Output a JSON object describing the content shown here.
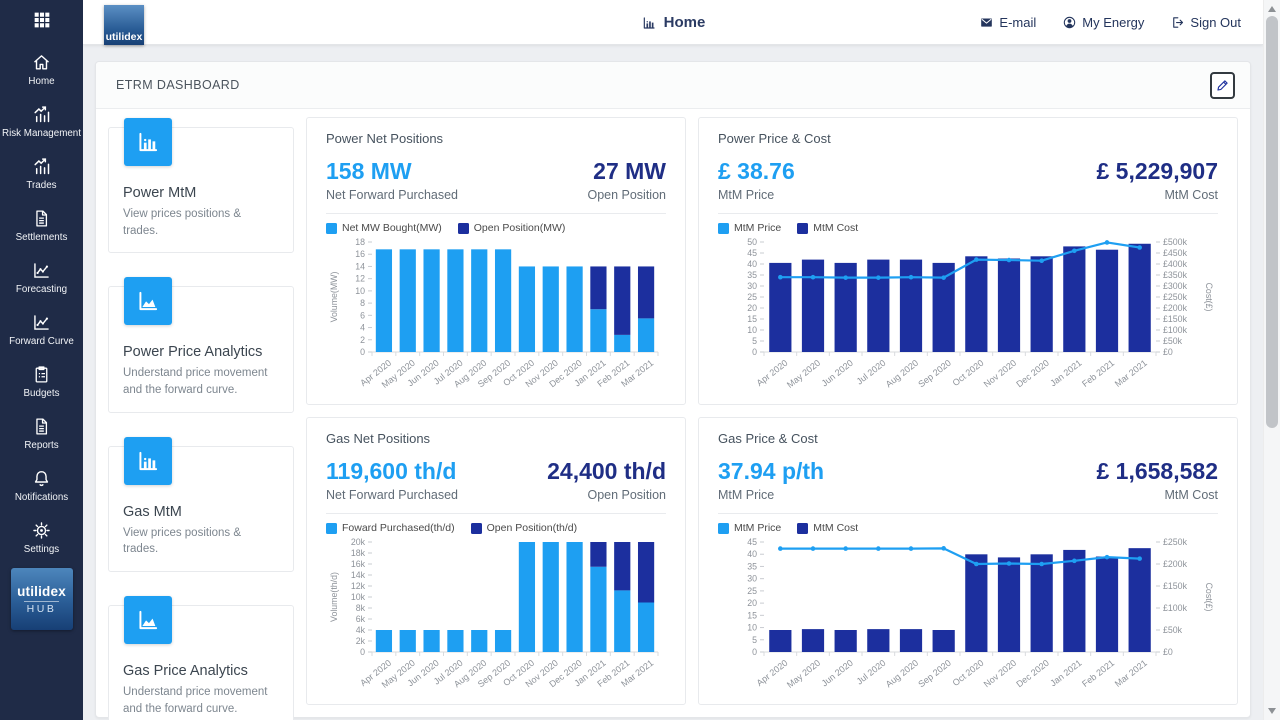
{
  "brand": {
    "name": "utilidex",
    "hub": "HUB"
  },
  "topbar": {
    "title": "Home",
    "title_icon": "bar-chart-icon",
    "links": [
      {
        "label": "E-mail",
        "icon": "email-icon"
      },
      {
        "label": "My Energy",
        "icon": "user-icon"
      },
      {
        "label": "Sign Out",
        "icon": "sign-out-icon"
      }
    ]
  },
  "sidebar": {
    "apps_icon": "apps-grid-icon",
    "items": [
      {
        "label": "Home",
        "icon": "home-icon"
      },
      {
        "label": "Risk Management",
        "icon": "risk-chart-icon"
      },
      {
        "label": "Trades",
        "icon": "trades-chart-icon"
      },
      {
        "label": "Settlements",
        "icon": "document-icon"
      },
      {
        "label": "Forecasting",
        "icon": "line-chart-icon"
      },
      {
        "label": "Forward Curve",
        "icon": "line-chart-icon"
      },
      {
        "label": "Budgets",
        "icon": "clipboard-icon"
      },
      {
        "label": "Reports",
        "icon": "document-icon"
      },
      {
        "label": "Notifications",
        "icon": "bell-icon"
      },
      {
        "label": "Settings",
        "icon": "gear-icon"
      }
    ]
  },
  "panel": {
    "title": "ETRM DASHBOARD",
    "edit_icon": "pencil-icon"
  },
  "nav_cards": [
    {
      "icon": "bar-chart-icon",
      "title": "Power MtM",
      "desc": "View prices positions & trades."
    },
    {
      "icon": "area-chart-icon",
      "title": "Power Price Analytics",
      "desc": "Understand price movement and the forward curve."
    },
    {
      "icon": "bar-chart-icon",
      "title": "Gas MtM",
      "desc": "View prices positions & trades."
    },
    {
      "icon": "area-chart-icon",
      "title": "Gas Price Analytics",
      "desc": "Understand price movement and the forward curve."
    }
  ],
  "chart_cards": [
    {
      "title": "Power Net Positions",
      "primary_value": "158 MW",
      "primary_label": "Net Forward Purchased",
      "secondary_value": "27 MW",
      "secondary_label": "Open Position"
    },
    {
      "title": "Power Price & Cost",
      "primary_value": "£ 38.76",
      "primary_label": "MtM Price",
      "secondary_value": "£ 5,229,907",
      "secondary_label": "MtM Cost"
    },
    {
      "title": "Gas Net Positions",
      "primary_value": "119,600 th/d",
      "primary_label": "Net Forward Purchased",
      "secondary_value": "24,400 th/d",
      "secondary_label": "Open Position"
    },
    {
      "title": "Gas Price & Cost",
      "primary_value": "37.94 p/th",
      "primary_label": "MtM Price",
      "secondary_value": "£ 1,658,582",
      "secondary_label": "MtM Cost"
    }
  ],
  "chart_data": [
    {
      "type": "bar",
      "stacked": true,
      "title": "Power Net Positions",
      "grid": false,
      "legend_position": "top-left",
      "categories": [
        "Apr 2020",
        "May 2020",
        "Jun 2020",
        "Jul 2020",
        "Aug 2020",
        "Sep 2020",
        "Oct 2020",
        "Nov 2020",
        "Dec 2020",
        "Jan 2021",
        "Feb 2021",
        "Mar 2021"
      ],
      "series": [
        {
          "name": "Net MW Bought(MW)",
          "kind": "bar",
          "color": "accent",
          "values": [
            16.8,
            16.8,
            16.8,
            16.8,
            16.8,
            16.8,
            14,
            14,
            14,
            7,
            2.8,
            5.5
          ]
        },
        {
          "name": "Open Position(MW)",
          "kind": "bar",
          "color": "navy",
          "values": [
            0,
            0,
            0,
            0,
            0,
            0,
            0,
            0,
            0,
            7,
            11.2,
            8.5
          ]
        }
      ],
      "left_axis": {
        "min": 0,
        "max": 18,
        "step": 2,
        "label": "Volume(MW)",
        "format": "plain"
      }
    },
    {
      "type": "line+bar",
      "stacked": false,
      "title": "Power Price & Cost",
      "grid": false,
      "legend_position": "top-left",
      "categories": [
        "Apr 2020",
        "May 2020",
        "Jun 2020",
        "Jul 2020",
        "Aug 2020",
        "Sep 2020",
        "Oct 2020",
        "Nov 2020",
        "Dec 2020",
        "Jan 2021",
        "Feb 2021",
        "Mar 2021"
      ],
      "series": [
        {
          "name": "MtM Price",
          "kind": "line",
          "axis": "left",
          "color": "accent",
          "values": [
            34,
            34,
            33.8,
            33.8,
            34,
            33.8,
            42,
            41.8,
            41.5,
            46,
            49.8,
            47.5
          ]
        },
        {
          "name": "MtM Cost",
          "kind": "bar",
          "axis": "right",
          "color": "navy",
          "values": [
            405,
            420,
            405,
            420,
            420,
            405,
            435,
            425,
            435,
            480,
            465,
            492
          ]
        }
      ],
      "left_axis": {
        "min": 0,
        "max": 50,
        "step": 5,
        "format": "plain"
      },
      "right_axis": {
        "min": 0,
        "max": 500,
        "step": 50,
        "label": "Cost(£)",
        "format": "pound-k",
        "unit": "£ thousands"
      }
    },
    {
      "type": "bar",
      "stacked": true,
      "title": "Gas Net Positions",
      "grid": false,
      "legend_position": "top-left",
      "categories": [
        "Apr 2020",
        "May 2020",
        "Jun 2020",
        "Jul 2020",
        "Aug 2020",
        "Sep 2020",
        "Oct 2020",
        "Nov 2020",
        "Dec 2020",
        "Jan 2021",
        "Feb 2021",
        "Mar 2021"
      ],
      "series": [
        {
          "name": "Foward Purchased(th/d)",
          "kind": "bar",
          "color": "accent",
          "values": [
            4000,
            4000,
            4000,
            4000,
            4000,
            4000,
            20000,
            20000,
            20000,
            15500,
            11200,
            9000
          ]
        },
        {
          "name": "Open Position(th/d)",
          "kind": "bar",
          "color": "navy",
          "values": [
            0,
            0,
            0,
            0,
            0,
            0,
            0,
            0,
            0,
            4500,
            8800,
            11000
          ]
        }
      ],
      "left_axis": {
        "min": 0,
        "max": 20000,
        "step": 2000,
        "label": "Volume(th/d)",
        "format": "thousands-k"
      }
    },
    {
      "type": "line+bar",
      "stacked": false,
      "title": "Gas Price & Cost",
      "grid": false,
      "legend_position": "top-left",
      "categories": [
        "Apr 2020",
        "May 2020",
        "Jun 2020",
        "Jul 2020",
        "Aug 2020",
        "Sep 2020",
        "Oct 2020",
        "Nov 2020",
        "Dec 2020",
        "Jan 2021",
        "Feb 2021",
        "Mar 2021"
      ],
      "series": [
        {
          "name": "MtM Price",
          "kind": "line",
          "axis": "left",
          "color": "accent",
          "values": [
            42.3,
            42.3,
            42.3,
            42.3,
            42.3,
            42.4,
            36,
            36.2,
            36,
            37.3,
            38.8,
            38.2
          ]
        },
        {
          "name": "MtM Cost",
          "kind": "bar",
          "axis": "right",
          "color": "navy",
          "values": [
            50,
            52,
            50,
            52,
            52,
            50,
            222,
            215,
            222,
            232,
            217,
            236
          ]
        }
      ],
      "left_axis": {
        "min": 0,
        "max": 45,
        "step": 5,
        "format": "plain"
      },
      "right_axis": {
        "min": 0,
        "max": 250,
        "step": 50,
        "label": "Cost(£)",
        "format": "pound-k",
        "unit": "£ thousands"
      }
    }
  ],
  "colors": {
    "accent": "#1e9ff2",
    "navy": "#1c2f9e",
    "value_navy": "#1f2e85",
    "sidebar_bg": "#1f2b47",
    "topbar_text": "#24355c",
    "axis_text": "#8e939a"
  }
}
